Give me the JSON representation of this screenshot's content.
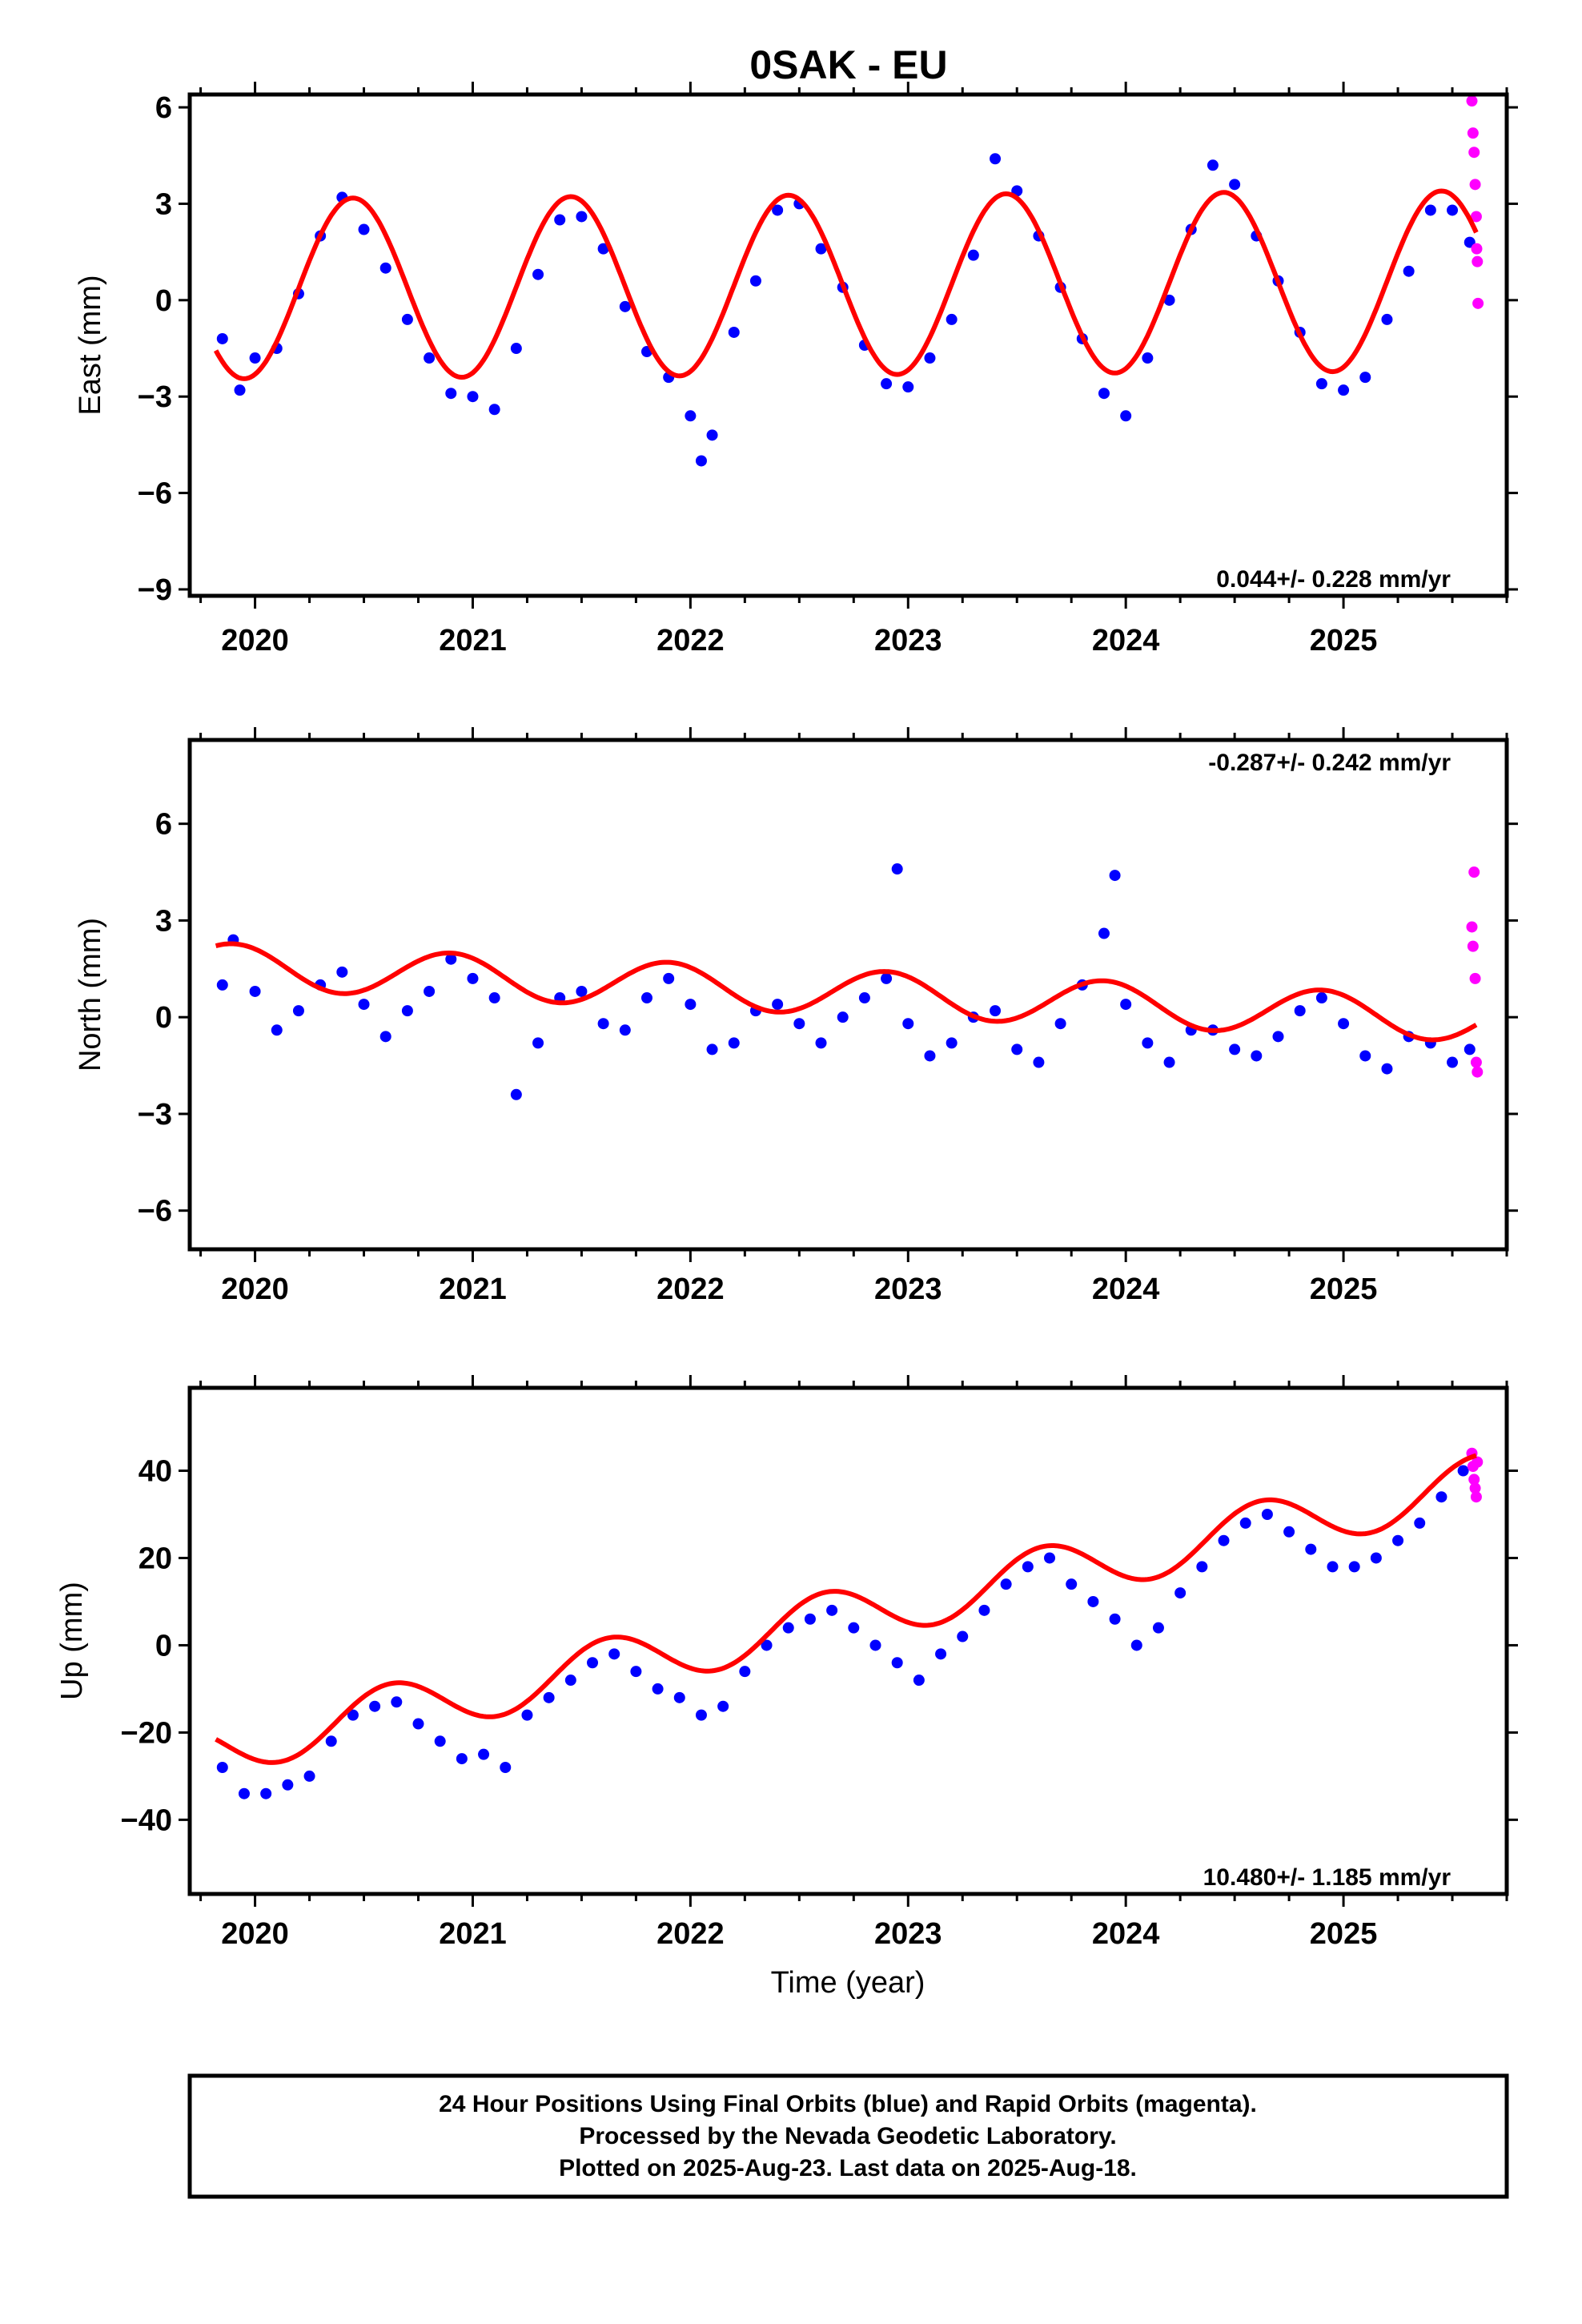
{
  "title": "0SAK - EU",
  "colors": {
    "final": "#0000ff",
    "rapid": "#ff00ff",
    "model": "#ff0000"
  },
  "footer": {
    "line1": "24 Hour Positions Using Final Orbits (blue) and Rapid Orbits (magenta).",
    "line2": "Processed by the Nevada Geodetic Laboratory.",
    "line3": "Plotted on 2025-Aug-23. Last data on 2025-Aug-18."
  },
  "chart_data": [
    {
      "type": "scatter",
      "ylabel": "East (mm)",
      "xlabel": "",
      "xlim": [
        2019.7,
        2025.75
      ],
      "ylim": [
        -9.2,
        6.4
      ],
      "yticks": [
        -9,
        -6,
        -3,
        0,
        3,
        6
      ],
      "xticks": [
        2020,
        2021,
        2022,
        2023,
        2024,
        2025
      ],
      "trend": "0.044+/- 0.228 mm/yr",
      "trend_position": "bottom-right",
      "model": {
        "offset": 0.35,
        "slope": 0.044,
        "annual_amp": 2.8,
        "annual_peak": 2020.45,
        "start": 2019.82,
        "end": 2025.61
      },
      "final_points": [
        [
          2019.85,
          -1.2
        ],
        [
          2019.93,
          -2.8
        ],
        [
          2020.0,
          -1.8
        ],
        [
          2020.1,
          -1.5
        ],
        [
          2020.2,
          0.2
        ],
        [
          2020.3,
          2.0
        ],
        [
          2020.4,
          3.2
        ],
        [
          2020.5,
          2.2
        ],
        [
          2020.6,
          1.0
        ],
        [
          2020.7,
          -0.6
        ],
        [
          2020.8,
          -1.8
        ],
        [
          2020.9,
          -2.9
        ],
        [
          2021.0,
          -3.0
        ],
        [
          2021.1,
          -3.4
        ],
        [
          2021.2,
          -1.5
        ],
        [
          2021.3,
          0.8
        ],
        [
          2021.4,
          2.5
        ],
        [
          2021.5,
          2.6
        ],
        [
          2021.6,
          1.6
        ],
        [
          2021.7,
          -0.2
        ],
        [
          2021.8,
          -1.6
        ],
        [
          2021.9,
          -2.4
        ],
        [
          2022.0,
          -3.6
        ],
        [
          2022.05,
          -5.0
        ],
        [
          2022.1,
          -4.2
        ],
        [
          2022.2,
          -1.0
        ],
        [
          2022.3,
          0.6
        ],
        [
          2022.4,
          2.8
        ],
        [
          2022.5,
          3.0
        ],
        [
          2022.6,
          1.6
        ],
        [
          2022.7,
          0.4
        ],
        [
          2022.8,
          -1.4
        ],
        [
          2022.9,
          -2.6
        ],
        [
          2023.0,
          -2.7
        ],
        [
          2023.1,
          -1.8
        ],
        [
          2023.2,
          -0.6
        ],
        [
          2023.3,
          1.4
        ],
        [
          2023.4,
          4.4
        ],
        [
          2023.5,
          3.4
        ],
        [
          2023.6,
          2.0
        ],
        [
          2023.7,
          0.4
        ],
        [
          2023.8,
          -1.2
        ],
        [
          2023.9,
          -2.9
        ],
        [
          2024.0,
          -3.6
        ],
        [
          2024.1,
          -1.8
        ],
        [
          2024.2,
          0.0
        ],
        [
          2024.3,
          2.2
        ],
        [
          2024.4,
          4.2
        ],
        [
          2024.5,
          3.6
        ],
        [
          2024.6,
          2.0
        ],
        [
          2024.7,
          0.6
        ],
        [
          2024.8,
          -1.0
        ],
        [
          2024.9,
          -2.6
        ],
        [
          2025.0,
          -2.8
        ],
        [
          2025.1,
          -2.4
        ],
        [
          2025.2,
          -0.6
        ],
        [
          2025.3,
          0.9
        ],
        [
          2025.4,
          2.8
        ],
        [
          2025.5,
          2.8
        ],
        [
          2025.58,
          1.8
        ]
      ],
      "rapid_points": [
        [
          2025.59,
          6.2
        ],
        [
          2025.595,
          5.2
        ],
        [
          2025.6,
          4.6
        ],
        [
          2025.605,
          3.6
        ],
        [
          2025.61,
          2.6
        ],
        [
          2025.612,
          1.6
        ],
        [
          2025.615,
          1.2
        ],
        [
          2025.618,
          -0.1
        ]
      ]
    },
    {
      "type": "scatter",
      "ylabel": "North (mm)",
      "xlabel": "",
      "xlim": [
        2019.7,
        2025.75
      ],
      "ylim": [
        -7.2,
        8.6
      ],
      "yticks": [
        -6,
        -3,
        0,
        3,
        6
      ],
      "xticks": [
        2020,
        2021,
        2022,
        2023,
        2024,
        2025
      ],
      "trend": "-0.287+/- 0.242 mm/yr",
      "trend_position": "top-right",
      "model": {
        "offset": 1.6,
        "slope": -0.287,
        "annual_amp": 0.7,
        "annual_peak": 2019.9,
        "start": 2019.82,
        "end": 2025.61
      },
      "final_points": [
        [
          2019.85,
          1.0
        ],
        [
          2019.9,
          2.4
        ],
        [
          2020.0,
          0.8
        ],
        [
          2020.1,
          -0.4
        ],
        [
          2020.2,
          0.2
        ],
        [
          2020.3,
          1.0
        ],
        [
          2020.4,
          1.4
        ],
        [
          2020.5,
          0.4
        ],
        [
          2020.6,
          -0.6
        ],
        [
          2020.7,
          0.2
        ],
        [
          2020.8,
          0.8
        ],
        [
          2020.9,
          1.8
        ],
        [
          2021.0,
          1.2
        ],
        [
          2021.1,
          0.6
        ],
        [
          2021.2,
          -2.4
        ],
        [
          2021.3,
          -0.8
        ],
        [
          2021.4,
          0.6
        ],
        [
          2021.5,
          0.8
        ],
        [
          2021.6,
          -0.2
        ],
        [
          2021.7,
          -0.4
        ],
        [
          2021.8,
          0.6
        ],
        [
          2021.9,
          1.2
        ],
        [
          2022.0,
          0.4
        ],
        [
          2022.1,
          -1.0
        ],
        [
          2022.2,
          -0.8
        ],
        [
          2022.3,
          0.2
        ],
        [
          2022.4,
          0.4
        ],
        [
          2022.5,
          -0.2
        ],
        [
          2022.6,
          -0.8
        ],
        [
          2022.7,
          0.0
        ],
        [
          2022.8,
          0.6
        ],
        [
          2022.9,
          1.2
        ],
        [
          2022.95,
          4.6
        ],
        [
          2023.0,
          -0.2
        ],
        [
          2023.1,
          -1.2
        ],
        [
          2023.2,
          -0.8
        ],
        [
          2023.3,
          0.0
        ],
        [
          2023.4,
          0.2
        ],
        [
          2023.5,
          -1.0
        ],
        [
          2023.6,
          -1.4
        ],
        [
          2023.7,
          -0.2
        ],
        [
          2023.8,
          1.0
        ],
        [
          2023.9,
          2.6
        ],
        [
          2023.95,
          4.4
        ],
        [
          2024.0,
          0.4
        ],
        [
          2024.1,
          -0.8
        ],
        [
          2024.2,
          -1.4
        ],
        [
          2024.3,
          -0.4
        ],
        [
          2024.4,
          -0.4
        ],
        [
          2024.5,
          -1.0
        ],
        [
          2024.6,
          -1.2
        ],
        [
          2024.7,
          -0.6
        ],
        [
          2024.8,
          0.2
        ],
        [
          2024.9,
          0.6
        ],
        [
          2025.0,
          -0.2
        ],
        [
          2025.1,
          -1.2
        ],
        [
          2025.2,
          -1.6
        ],
        [
          2025.3,
          -0.6
        ],
        [
          2025.4,
          -0.8
        ],
        [
          2025.5,
          -1.4
        ],
        [
          2025.58,
          -1.0
        ]
      ],
      "rapid_points": [
        [
          2025.59,
          2.8
        ],
        [
          2025.595,
          2.2
        ],
        [
          2025.6,
          4.5
        ],
        [
          2025.605,
          1.2
        ],
        [
          2025.61,
          -1.4
        ],
        [
          2025.615,
          -1.7
        ]
      ]
    },
    {
      "type": "scatter",
      "ylabel": "Up (mm)",
      "xlabel": "Time (year)",
      "xlim": [
        2019.7,
        2025.75
      ],
      "ylim": [
        -57,
        59
      ],
      "yticks": [
        -40,
        -20,
        0,
        20,
        40
      ],
      "xticks": [
        2020,
        2021,
        2022,
        2023,
        2024,
        2025
      ],
      "trend": "10.480+/- 1.185 mm/yr",
      "trend_position": "bottom-right",
      "model": {
        "offset": -23.5,
        "slope": 10.48,
        "annual_amp": 6.3,
        "annual_peak": 2020.62,
        "start": 2019.82,
        "end": 2025.61
      },
      "final_points": [
        [
          2019.85,
          -28
        ],
        [
          2019.95,
          -34
        ],
        [
          2020.05,
          -34
        ],
        [
          2020.15,
          -32
        ],
        [
          2020.25,
          -30
        ],
        [
          2020.35,
          -22
        ],
        [
          2020.45,
          -16
        ],
        [
          2020.55,
          -14
        ],
        [
          2020.65,
          -13
        ],
        [
          2020.75,
          -18
        ],
        [
          2020.85,
          -22
        ],
        [
          2020.95,
          -26
        ],
        [
          2021.05,
          -25
        ],
        [
          2021.15,
          -28
        ],
        [
          2021.25,
          -16
        ],
        [
          2021.35,
          -12
        ],
        [
          2021.45,
          -8
        ],
        [
          2021.55,
          -4
        ],
        [
          2021.65,
          -2
        ],
        [
          2021.75,
          -6
        ],
        [
          2021.85,
          -10
        ],
        [
          2021.95,
          -12
        ],
        [
          2022.05,
          -16
        ],
        [
          2022.15,
          -14
        ],
        [
          2022.25,
          -6
        ],
        [
          2022.35,
          0
        ],
        [
          2022.45,
          4
        ],
        [
          2022.55,
          6
        ],
        [
          2022.65,
          8
        ],
        [
          2022.75,
          4
        ],
        [
          2022.85,
          0
        ],
        [
          2022.95,
          -4
        ],
        [
          2023.05,
          -8
        ],
        [
          2023.15,
          -2
        ],
        [
          2023.25,
          2
        ],
        [
          2023.35,
          8
        ],
        [
          2023.45,
          14
        ],
        [
          2023.55,
          18
        ],
        [
          2023.65,
          20
        ],
        [
          2023.75,
          14
        ],
        [
          2023.85,
          10
        ],
        [
          2023.95,
          6
        ],
        [
          2024.05,
          0
        ],
        [
          2024.15,
          4
        ],
        [
          2024.25,
          12
        ],
        [
          2024.35,
          18
        ],
        [
          2024.45,
          24
        ],
        [
          2024.55,
          28
        ],
        [
          2024.65,
          30
        ],
        [
          2024.75,
          26
        ],
        [
          2024.85,
          22
        ],
        [
          2024.95,
          18
        ],
        [
          2025.05,
          18
        ],
        [
          2025.15,
          20
        ],
        [
          2025.25,
          24
        ],
        [
          2025.35,
          28
        ],
        [
          2025.45,
          34
        ],
        [
          2025.55,
          40
        ]
      ],
      "rapid_points": [
        [
          2025.59,
          44
        ],
        [
          2025.595,
          41
        ],
        [
          2025.6,
          38
        ],
        [
          2025.605,
          36
        ],
        [
          2025.61,
          34
        ],
        [
          2025.615,
          42
        ]
      ]
    }
  ]
}
